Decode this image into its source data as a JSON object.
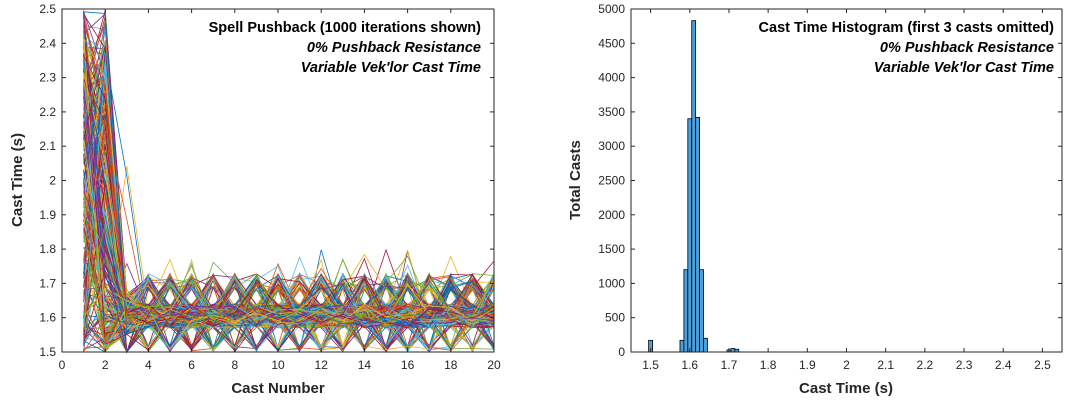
{
  "chart_data": [
    {
      "type": "line",
      "annotation": [
        "Spell Pushback (1000 iterations shown)",
        "0% Pushback Resistance",
        "Variable Vek'lor Cast Time"
      ],
      "xlabel": "Cast Number",
      "ylabel": "Cast Time (s)",
      "xlim": [
        0,
        20
      ],
      "ylim": [
        1.5,
        2.5
      ],
      "xticks": [
        0,
        2,
        4,
        6,
        8,
        10,
        12,
        14,
        16,
        18,
        20
      ],
      "yticks": [
        1.5,
        1.6,
        1.7,
        1.8,
        1.9,
        2,
        2.1,
        2.2,
        2.3,
        2.4,
        2.5
      ],
      "x": [
        1,
        2,
        3,
        4,
        5,
        6,
        7,
        8,
        9,
        10,
        11,
        12,
        13,
        14,
        15,
        16,
        17,
        18,
        19,
        20
      ],
      "series_count": 1000,
      "series_colors": [
        "#0072bd",
        "#d95319",
        "#edb120",
        "#7e2f8e",
        "#77ac30",
        "#4dbeee",
        "#a2142f"
      ],
      "approx_cast_time_ranges": {
        "cast_1": [
          1.5,
          2.5
        ],
        "cast_2": [
          1.5,
          2.5
        ],
        "cast_3": [
          1.5,
          2.17
        ],
        "cast_4_to_20": [
          1.5,
          1.8
        ]
      },
      "grid": false
    },
    {
      "type": "bar",
      "annotation": [
        "Cast Time Histogram (first 3 casts omitted)",
        "0% Pushback Resistance",
        "Variable Vek'lor Cast Time"
      ],
      "xlabel": "Cast Time (s)",
      "ylabel": "Total Casts",
      "xlim": [
        1.45,
        2.55
      ],
      "ylim": [
        0,
        5000
      ],
      "xticks": [
        1.5,
        1.6,
        1.7,
        1.8,
        1.9,
        2,
        2.1,
        2.2,
        2.3,
        2.4,
        2.5
      ],
      "xtick_labels": [
        "1.5",
        "1.6",
        "1.7",
        "1.8",
        "1.9",
        "2",
        "2.1",
        "2.2",
        "2.3",
        "2.4",
        "2.5"
      ],
      "yticks": [
        0,
        500,
        1000,
        1500,
        2000,
        2500,
        3000,
        3500,
        4000,
        4500,
        5000
      ],
      "bin_width": 0.01,
      "bins": [
        {
          "x": 1.5,
          "value": 170
        },
        {
          "x": 1.51,
          "value": 0
        },
        {
          "x": 1.52,
          "value": 0
        },
        {
          "x": 1.53,
          "value": 0
        },
        {
          "x": 1.54,
          "value": 0
        },
        {
          "x": 1.55,
          "value": 0
        },
        {
          "x": 1.56,
          "value": 0
        },
        {
          "x": 1.57,
          "value": 0
        },
        {
          "x": 1.58,
          "value": 170
        },
        {
          "x": 1.59,
          "value": 1200
        },
        {
          "x": 1.6,
          "value": 3400
        },
        {
          "x": 1.61,
          "value": 4830
        },
        {
          "x": 1.62,
          "value": 3420
        },
        {
          "x": 1.63,
          "value": 1200
        },
        {
          "x": 1.64,
          "value": 200
        },
        {
          "x": 1.65,
          "value": 0
        },
        {
          "x": 1.66,
          "value": 0
        },
        {
          "x": 1.67,
          "value": 0
        },
        {
          "x": 1.68,
          "value": 0
        },
        {
          "x": 1.69,
          "value": 0
        },
        {
          "x": 1.7,
          "value": 30
        },
        {
          "x": 1.71,
          "value": 50
        },
        {
          "x": 1.72,
          "value": 40
        }
      ],
      "bar_color": "#4d9fdc",
      "bar_edge_color": "#000000",
      "grid": false
    }
  ]
}
